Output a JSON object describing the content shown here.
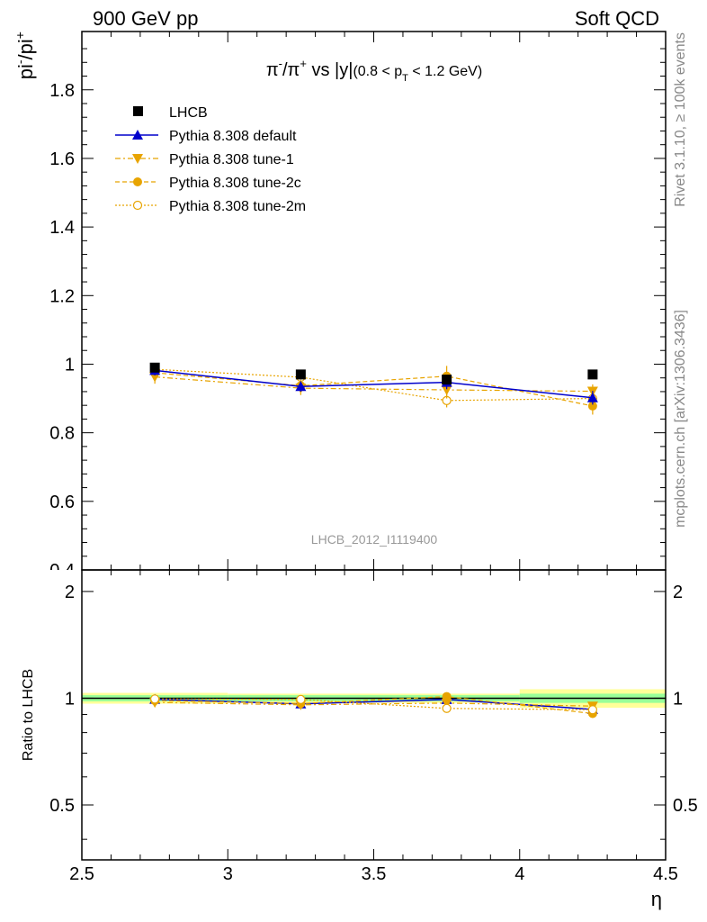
{
  "header": {
    "left": "900 GeV pp",
    "right": "Soft QCD"
  },
  "side_labels": {
    "rivet": "Rivet 3.1.10, ≥ 100k events",
    "mcplots": "mcplots.cern.ch [arXiv:1306.3436]"
  },
  "colors": {
    "data": "#000000",
    "default": "#0000cc",
    "tunes": "#e8a400",
    "band_inner": "#99ff99",
    "band_outer": "#ffff99"
  },
  "chart_data": [
    {
      "type": "line",
      "title_parts": {
        "pre": "π",
        "sup1": "-",
        "mid": "/π",
        "sup2": "+",
        "post": " vs |y|",
        "range_pre": "(0.8 < p",
        "range_sub": "T",
        "range_post": " < 1.2 GeV)"
      },
      "ylabel_parts": {
        "pre": "pi",
        "sup1": "-",
        "mid": "/pi",
        "sup2": "+"
      },
      "xlabel": "η",
      "xlim": [
        2.5,
        4.5
      ],
      "ylim": [
        0.4,
        1.97
      ],
      "yticks": [
        0.6,
        0.8,
        1.0,
        1.2,
        1.4,
        1.6,
        1.8
      ],
      "ytick_labels": [
        "0.6",
        "0.8",
        "1",
        "1.2",
        "1.4",
        "1.6",
        "1.8"
      ],
      "partial_tick_label": "0.4",
      "watermark": "LHCB_2012_I1119400",
      "legend_position": "top-left",
      "x": [
        2.75,
        3.25,
        3.75,
        4.25
      ],
      "series": [
        {
          "name": "LHCB",
          "values": [
            0.99,
            0.97,
            0.955,
            0.97
          ],
          "errors": [
            0.01,
            0.01,
            0.01,
            0.01
          ]
        },
        {
          "name": "Pythia 8.308 default",
          "values": [
            0.982,
            0.935,
            0.947,
            0.902
          ],
          "errors": [
            0.015,
            0.015,
            0.02,
            0.02
          ]
        },
        {
          "name": "Pythia 8.308 tune-1",
          "values": [
            0.963,
            0.93,
            0.925,
            0.921
          ],
          "errors": [
            0.02,
            0.02,
            0.025,
            0.02
          ]
        },
        {
          "name": "Pythia 8.308 tune-2c",
          "values": [
            0.975,
            0.937,
            0.965,
            0.878
          ],
          "errors": [
            0.018,
            0.018,
            0.03,
            0.025
          ]
        },
        {
          "name": "Pythia 8.308 tune-2m",
          "values": [
            0.985,
            0.962,
            0.894,
            0.9
          ],
          "errors": [
            0.015,
            0.015,
            0.02,
            0.02
          ]
        }
      ]
    },
    {
      "type": "line",
      "ylabel": "Ratio to LHCB",
      "xlabel": "η",
      "xlim": [
        2.5,
        4.5
      ],
      "ylim": [
        0.35,
        2.3
      ],
      "yticks": [
        0.5,
        1,
        2
      ],
      "ytick_labels": [
        "0.5",
        "1",
        "2"
      ],
      "xticks": [
        2.5,
        3,
        3.5,
        4,
        4.5
      ],
      "xtick_labels": [
        "2.5",
        "3",
        "3.5",
        "4",
        "4.5"
      ],
      "x": [
        2.75,
        3.25,
        3.75,
        4.25
      ],
      "band_inner": [
        0.02,
        0.02,
        0.02,
        0.03
      ],
      "band_outer": [
        0.035,
        0.03,
        0.03,
        0.06
      ],
      "series": [
        {
          "name": "Pythia 8.308 default",
          "values": [
            0.993,
            0.964,
            0.992,
            0.93
          ]
        },
        {
          "name": "Pythia 8.308 tune-1",
          "values": [
            0.973,
            0.958,
            0.969,
            0.95
          ]
        },
        {
          "name": "Pythia 8.308 tune-2c",
          "values": [
            0.985,
            0.966,
            1.011,
            0.905
          ]
        },
        {
          "name": "Pythia 8.308 tune-2m",
          "values": [
            0.995,
            0.992,
            0.936,
            0.928
          ]
        }
      ]
    }
  ]
}
